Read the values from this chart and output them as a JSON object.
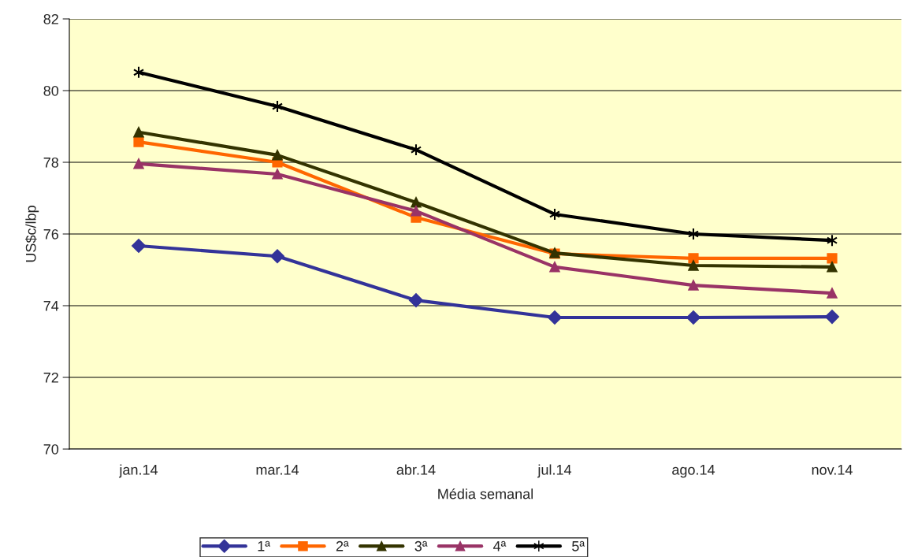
{
  "chart_data": {
    "type": "line",
    "xlabel": "Média semanal",
    "ylabel": "US$c/lbp",
    "categories": [
      "jan.14",
      "mar.14",
      "abr.14",
      "jul.14",
      "ago.14",
      "nov.14"
    ],
    "series": [
      {
        "name": "1ª",
        "color": "#333399",
        "marker": "diamond",
        "values": [
          75.67,
          75.38,
          74.15,
          73.67,
          73.67,
          73.69
        ]
      },
      {
        "name": "2ª",
        "color": "#ff6600",
        "marker": "square",
        "values": [
          78.57,
          78.0,
          76.46,
          75.45,
          75.32,
          75.32
        ]
      },
      {
        "name": "3ª",
        "color": "#333300",
        "marker": "triangle",
        "values": [
          78.84,
          78.2,
          76.88,
          75.47,
          75.12,
          75.08
        ]
      },
      {
        "name": "4ª",
        "color": "#993366",
        "marker": "triangle",
        "values": [
          77.96,
          77.67,
          76.64,
          75.08,
          74.57,
          74.35
        ]
      },
      {
        "name": "5ª",
        "color": "#000000",
        "marker": "cross",
        "values": [
          80.51,
          79.56,
          78.35,
          76.55,
          76.0,
          75.82
        ]
      }
    ],
    "ylim": [
      70,
      82
    ],
    "yticks": [
      70,
      72,
      74,
      76,
      78,
      80,
      82
    ],
    "grid": "y",
    "legend": "bottom",
    "line_style": "solid"
  }
}
